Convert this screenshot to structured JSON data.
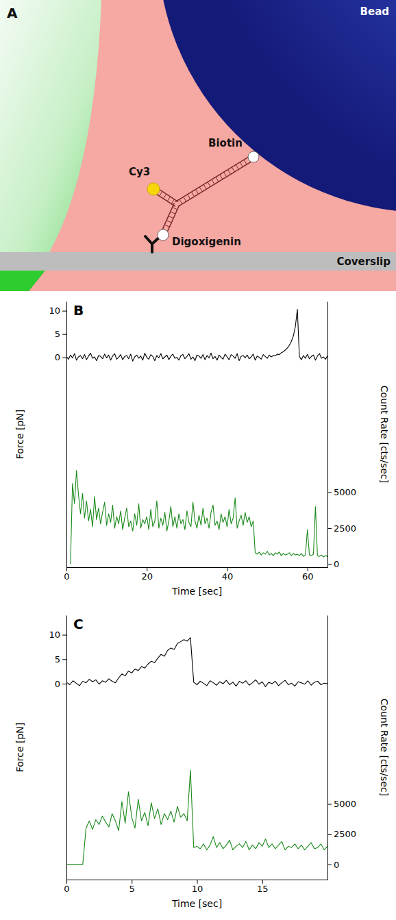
{
  "diagram": {
    "panel": "A",
    "labels": {
      "bead": "Bead",
      "cy3": "Cy3",
      "biotin": "Biotin",
      "digoxigenin": "Digoxigenin",
      "coverslip": "Coverslip"
    }
  },
  "chart_data": [
    {
      "type": "line",
      "title": "B",
      "xlabel": "Time [sec]",
      "ylabel": "Force [pN]",
      "y2label": "Count Rate [cts/sec]",
      "xlim": [
        0,
        65
      ],
      "xticks": [
        0,
        20,
        40,
        60
      ],
      "ylim": [
        -45,
        12
      ],
      "yticks": [
        0,
        5,
        10
      ],
      "y2lim": [
        -200,
        18200
      ],
      "y2ticks": [
        0,
        2500,
        5000
      ],
      "x": [
        0,
        0.5,
        1,
        1.5,
        2,
        2.5,
        3,
        3.5,
        4,
        4.5,
        5,
        5.5,
        6,
        6.5,
        7,
        7.5,
        8,
        8.5,
        9,
        9.5,
        10,
        10.5,
        11,
        11.5,
        12,
        12.5,
        13,
        13.5,
        14,
        14.5,
        15,
        15.5,
        16,
        16.5,
        17,
        17.5,
        18,
        18.5,
        19,
        19.5,
        20,
        20.5,
        21,
        21.5,
        22,
        22.5,
        23,
        23.5,
        24,
        24.5,
        25,
        25.5,
        26,
        26.5,
        27,
        27.5,
        28,
        28.5,
        29,
        29.5,
        30,
        30.5,
        31,
        31.5,
        32,
        32.5,
        33,
        33.5,
        34,
        34.5,
        35,
        35.5,
        36,
        36.5,
        37,
        37.5,
        38,
        38.5,
        39,
        39.5,
        40,
        40.5,
        41,
        41.5,
        42,
        42.5,
        43,
        43.5,
        44,
        44.5,
        45,
        45.5,
        46,
        46.5,
        47,
        47.5,
        48,
        48.5,
        49,
        49.5,
        50,
        50.5,
        51,
        51.5,
        52,
        52.5,
        53,
        53.5,
        54,
        54.5,
        55,
        55.5,
        56,
        56.5,
        57,
        57.5,
        58,
        58.5,
        59,
        59.5,
        60,
        60.5,
        61,
        61.5,
        62,
        62.5,
        63,
        63.5,
        64,
        64.5,
        65
      ],
      "series": [
        {
          "color": "#000000",
          "values": [
            0.2,
            -0.4,
            0.5,
            -0.1,
            0.8,
            -0.6,
            0.1,
            0.4,
            -0.3,
            0.6,
            -0.5,
            0.3,
            0.9,
            -0.2,
            0.1,
            -0.7,
            0.4,
            0.2,
            -0.3,
            0.7,
            -0.1,
            0.5,
            -0.6,
            0.3,
            0.8,
            -0.4,
            0.0,
            0.6,
            -0.5,
            0.2,
            0.4,
            -0.3,
            0.7,
            -0.8,
            0.1,
            0.5,
            -0.2,
            0.3,
            -0.6,
            0.9,
            0.0,
            -0.4,
            0.6,
            0.2,
            -0.7,
            0.4,
            -0.1,
            0.8,
            -0.3,
            0.1,
            0.5,
            -0.5,
            0.3,
            0.7,
            -0.2,
            0.0,
            -0.6,
            0.4,
            0.6,
            -0.3,
            0.2,
            0.8,
            -0.4,
            0.1,
            -0.7,
            0.5,
            0.3,
            -0.2,
            0.6,
            -0.5,
            0.4,
            -0.1,
            0.9,
            -0.3,
            0.2,
            -0.6,
            0.5,
            0.0,
            -0.4,
            0.7,
            0.1,
            -0.5,
            0.6,
            0.3,
            -0.2,
            0.8,
            -0.7,
            0.2,
            0.4,
            -0.1,
            0.5,
            -0.3,
            0.1,
            0.7,
            -0.6,
            0.3,
            0.0,
            -0.4,
            0.6,
            0.2,
            -0.2,
            0.5,
            0.1,
            0.4,
            0.3,
            0.7,
            0.6,
            1.0,
            1.2,
            1.6,
            2.0,
            2.6,
            3.4,
            4.6,
            6.6,
            10.3,
            0.2,
            -0.5,
            0.4,
            -0.2,
            0.6,
            -0.3,
            0.2,
            0.5,
            -0.6,
            0.3,
            0.8,
            -0.2,
            0.1,
            -0.4,
            0.3
          ]
        },
        {
          "color": "#1b8a1b",
          "axis": "y2",
          "values": [
            null,
            null,
            0,
            5600,
            4200,
            6500,
            4800,
            3500,
            4900,
            3200,
            4400,
            3000,
            3800,
            2600,
            4700,
            3100,
            3900,
            2800,
            3600,
            4300,
            2700,
            3500,
            2900,
            4100,
            2500,
            3300,
            2800,
            3700,
            2400,
            3200,
            3900,
            2600,
            3000,
            2300,
            3500,
            2700,
            4200,
            2500,
            3100,
            2800,
            3300,
            2400,
            3800,
            2600,
            3000,
            4400,
            2500,
            3200,
            2700,
            3600,
            2300,
            3000,
            4000,
            2600,
            3300,
            2500,
            3500,
            2800,
            3100,
            2400,
            3700,
            2900,
            2600,
            4300,
            3000,
            2500,
            3400,
            2700,
            3900,
            2800,
            3200,
            2500,
            3600,
            4100,
            2700,
            3000,
            2400,
            3500,
            2900,
            3300,
            2600,
            3800,
            2800,
            3200,
            4600,
            2500,
            3000,
            3400,
            2700,
            3600,
            2900,
            3300,
            2600,
            3000,
            800,
            700,
            850,
            650,
            800,
            700,
            900,
            650,
            750,
            600,
            800,
            700,
            850,
            600,
            750,
            650,
            700,
            800,
            600,
            750,
            650,
            700,
            600,
            750,
            550,
            650,
            2400,
            650,
            600,
            700,
            4000,
            600,
            550,
            650,
            500,
            600,
            550
          ]
        }
      ]
    },
    {
      "type": "line",
      "title": "C",
      "xlabel": "Time [sec]",
      "ylabel": "Force [pN]",
      "y2label": "Count Rate [cts/sec]",
      "xlim": [
        0,
        20
      ],
      "xticks": [
        0,
        5,
        10,
        15
      ],
      "ylim": [
        -40,
        14
      ],
      "yticks": [
        0,
        5,
        10
      ],
      "y2lim": [
        -1250,
        20600
      ],
      "y2ticks": [
        0,
        2500,
        5000
      ],
      "x": [
        0,
        0.25,
        0.5,
        0.75,
        1,
        1.25,
        1.5,
        1.75,
        2,
        2.25,
        2.5,
        2.75,
        3,
        3.25,
        3.5,
        3.75,
        4,
        4.25,
        4.5,
        4.75,
        5,
        5.25,
        5.5,
        5.75,
        6,
        6.25,
        6.5,
        6.75,
        7,
        7.25,
        7.5,
        7.75,
        8,
        8.25,
        8.5,
        8.75,
        9,
        9.25,
        9.5,
        9.75,
        10,
        10.25,
        10.5,
        10.75,
        11,
        11.25,
        11.5,
        11.75,
        12,
        12.25,
        12.5,
        12.75,
        13,
        13.25,
        13.5,
        13.75,
        14,
        14.25,
        14.5,
        14.75,
        15,
        15.25,
        15.5,
        15.75,
        16,
        16.25,
        16.5,
        16.75,
        17,
        17.25,
        17.5,
        17.75,
        18,
        18.25,
        18.5,
        18.75,
        19,
        19.25,
        19.5,
        19.75,
        20
      ],
      "series": [
        {
          "color": "#000000",
          "values": [
            0.3,
            -0.2,
            0.6,
            0.1,
            -0.4,
            0.5,
            0.2,
            0.9,
            0.4,
            0.8,
            -0.1,
            0.6,
            0.3,
            1.0,
            0.5,
            0.2,
            1.2,
            2.0,
            1.6,
            2.6,
            2.2,
            3.0,
            2.7,
            3.5,
            3.2,
            4.0,
            4.6,
            4.3,
            5.2,
            6.0,
            5.6,
            6.8,
            7.3,
            7.0,
            8.2,
            8.6,
            9.0,
            8.7,
            9.4,
            0.3,
            -0.2,
            0.5,
            0.1,
            -0.4,
            0.6,
            0.2,
            -0.3,
            0.4,
            0.0,
            0.7,
            -0.2,
            0.3,
            -0.5,
            0.5,
            0.1,
            0.6,
            -0.3,
            0.2,
            0.8,
            -0.1,
            0.4,
            -0.6,
            0.3,
            0.0,
            0.5,
            -0.4,
            0.2,
            0.7,
            -0.2,
            0.1,
            -0.5,
            0.4,
            0.2,
            -0.1,
            0.6,
            -0.3,
            0.3,
            0.5,
            -0.2,
            0.1,
            0.0
          ]
        },
        {
          "color": "#1b8a1b",
          "axis": "y2",
          "values": [
            0,
            0,
            0,
            0,
            0,
            0,
            3000,
            3600,
            2900,
            3700,
            3300,
            4000,
            3500,
            3100,
            4200,
            3600,
            2800,
            5200,
            3400,
            6000,
            3900,
            3000,
            5400,
            3600,
            4300,
            3200,
            5100,
            3800,
            4600,
            3300,
            4200,
            3700,
            4400,
            3500,
            4800,
            3900,
            4200,
            3600,
            7800,
            1400,
            1500,
            1300,
            1700,
            1200,
            1600,
            2300,
            1400,
            1800,
            1300,
            1600,
            2000,
            1200,
            1500,
            1700,
            1400,
            1900,
            1200,
            1600,
            1300,
            1800,
            1500,
            2100,
            1400,
            1700,
            1300,
            1600,
            1900,
            1200,
            1500,
            1400,
            1700,
            1300,
            1600,
            1200,
            1500,
            1800,
            1300,
            1400,
            1700,
            1200,
            1500
          ]
        }
      ]
    }
  ]
}
